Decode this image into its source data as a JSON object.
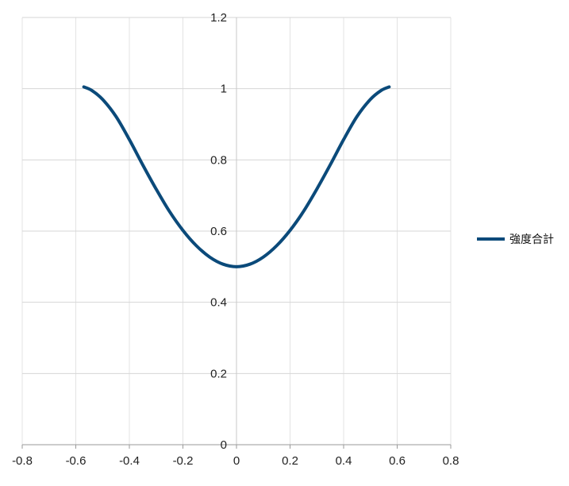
{
  "chart_data": {
    "type": "line",
    "title": "",
    "xlabel": "",
    "ylabel": "",
    "xlim": [
      -0.8,
      0.8
    ],
    "ylim": [
      0,
      1.2
    ],
    "x_ticks": [
      -0.8,
      -0.6,
      -0.4,
      -0.2,
      0,
      0.2,
      0.4,
      0.6,
      0.8
    ],
    "x_tick_labels": [
      "-0.8",
      "-0.6",
      "-0.4",
      "-0.2",
      "0",
      "0.2",
      "0.4",
      "0.6",
      "0.8"
    ],
    "y_ticks": [
      0,
      0.2,
      0.4,
      0.6,
      0.8,
      1,
      1.2
    ],
    "y_tick_labels": [
      "0",
      "0.2",
      "0.4",
      "0.6",
      "0.8",
      "1",
      "1.2"
    ],
    "grid": true,
    "legend_position": "right",
    "series": [
      {
        "name": "強度合計",
        "color": "#0b4a7a",
        "x": [
          -0.57,
          -0.54,
          -0.5,
          -0.45,
          -0.4,
          -0.35,
          -0.3,
          -0.25,
          -0.2,
          -0.15,
          -0.1,
          -0.05,
          0,
          0.05,
          0.1,
          0.15,
          0.2,
          0.25,
          0.3,
          0.35,
          0.4,
          0.45,
          0.5,
          0.54,
          0.57
        ],
        "y": [
          1.005,
          0.995,
          0.97,
          0.922,
          0.857,
          0.786,
          0.718,
          0.655,
          0.602,
          0.559,
          0.527,
          0.507,
          0.5,
          0.507,
          0.527,
          0.559,
          0.602,
          0.655,
          0.718,
          0.786,
          0.857,
          0.922,
          0.97,
          0.995,
          1.005
        ]
      }
    ]
  }
}
